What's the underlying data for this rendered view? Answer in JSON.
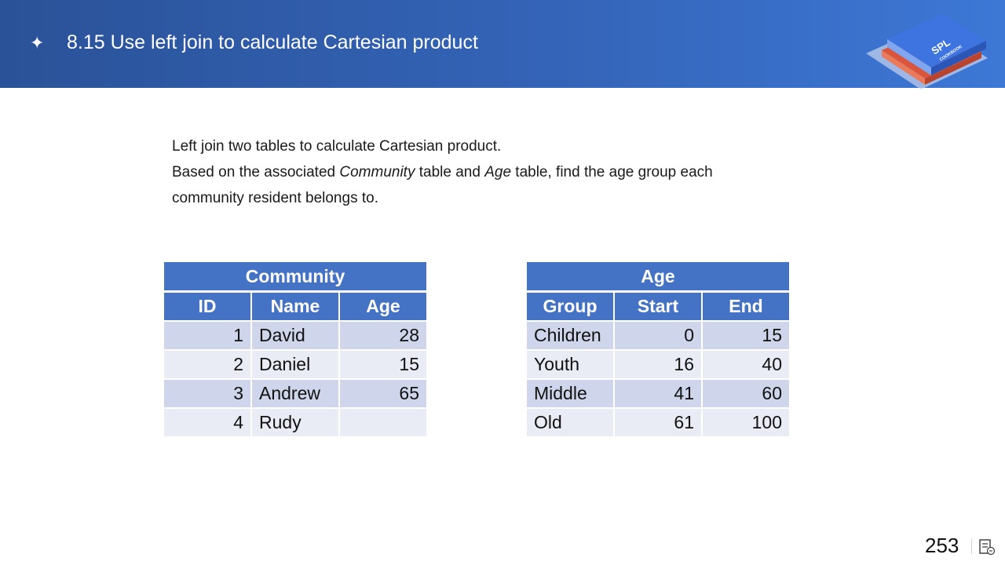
{
  "header": {
    "bullet": "✦",
    "title": "8.15 Use left join to calculate Cartesian product",
    "logo": {
      "line1": "SPL",
      "line2": "COOKBOOK"
    }
  },
  "description": {
    "line1": "Left join two tables to calculate Cartesian product.",
    "line2_pre": "Based on the associated ",
    "line2_em1": "Community",
    "line2_mid": " table and ",
    "line2_em2": "Age",
    "line2_post": " table, find the age group each",
    "line3": "community resident belongs to."
  },
  "community_table": {
    "caption": "Community",
    "columns": [
      "ID",
      "Name",
      "Age"
    ],
    "rows": [
      [
        "1",
        "David",
        "28"
      ],
      [
        "2",
        "Daniel",
        "15"
      ],
      [
        "3",
        "Andrew",
        "65"
      ],
      [
        "4",
        "Rudy",
        ""
      ]
    ]
  },
  "age_table": {
    "caption": "Age",
    "columns": [
      "Group",
      "Start",
      "End"
    ],
    "rows": [
      [
        "Children",
        "0",
        "15"
      ],
      [
        "Youth",
        "16",
        "40"
      ],
      [
        "Middle",
        "41",
        "60"
      ],
      [
        "Old",
        "61",
        "100"
      ]
    ]
  },
  "footer": {
    "page_number": "253"
  },
  "colors": {
    "header_blue": "#2a5298",
    "table_header": "#4472c4",
    "row_dark": "#cfd5ea",
    "row_light": "#e9ebf5"
  }
}
